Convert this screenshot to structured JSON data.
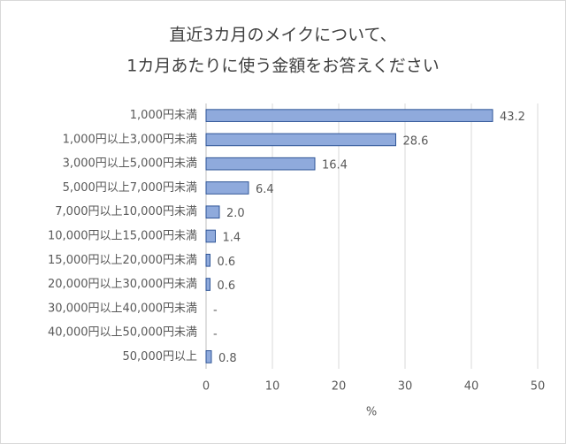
{
  "chart_data": {
    "type": "barh",
    "title": [
      "直近3カ月のメイクについて、",
      "1カ月あたりに使う金額をお答えください"
    ],
    "categories": [
      "1,000円未満",
      "1,000円以上3,000円未満",
      "3,000円以上5,000円未満",
      "5,000円以上7,000円未満",
      "7,000円以上10,000円未満",
      "10,000円以上15,000円未満",
      "15,000円以上20,000円未満",
      "20,000円以上30,000円未満",
      "30,000円以上40,000円未満",
      "40,000円以上50,000円未満",
      "50,000円以上"
    ],
    "values": [
      43.2,
      28.6,
      16.4,
      6.4,
      2.0,
      1.4,
      0.6,
      0.6,
      null,
      null,
      0.8
    ],
    "value_labels": [
      "43.2",
      "28.6",
      "16.4",
      "6.4",
      "2.0",
      "1.4",
      "0.6",
      "0.6",
      "-",
      "-",
      "0.8"
    ],
    "color": "#8faadc",
    "edge_color": "#2f5597",
    "xlim": [
      0,
      50
    ],
    "xticks": [
      0,
      10,
      20,
      30,
      40,
      50
    ],
    "xlabel": "%",
    "grid": true
  }
}
